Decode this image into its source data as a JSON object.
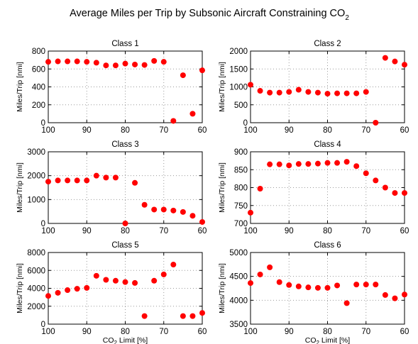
{
  "title": "Average Miles per Trip by Subsonic Aircraft Constraining CO",
  "title_subscript": "2",
  "chart_data": [
    {
      "type": "scatter",
      "title": "Class 1",
      "ylabel": "Miles/Trip [nmi]",
      "xlabel": "",
      "x_reversed": true,
      "xlim": [
        100,
        60
      ],
      "xticks": [
        100,
        90,
        80,
        70,
        60
      ],
      "ylim": [
        0,
        800
      ],
      "yticks": [
        0,
        200,
        400,
        600,
        800
      ],
      "grid": true,
      "color": "#ff0000",
      "x": [
        100,
        97.5,
        95,
        92.5,
        90,
        87.5,
        85,
        82.5,
        80,
        77.5,
        75,
        72.5,
        70,
        67.5,
        65,
        62.5,
        60
      ],
      "y": [
        680,
        685,
        685,
        685,
        680,
        670,
        640,
        640,
        660,
        650,
        645,
        690,
        680,
        20,
        530,
        100,
        585
      ]
    },
    {
      "type": "scatter",
      "title": "Class 2",
      "ylabel": "Miles/Trip [nmi]",
      "xlabel": "",
      "x_reversed": true,
      "xlim": [
        100,
        60
      ],
      "xticks": [
        100,
        90,
        80,
        70,
        60
      ],
      "ylim": [
        0,
        2000
      ],
      "yticks": [
        0,
        500,
        1000,
        1500,
        2000
      ],
      "grid": true,
      "color": "#ff0000",
      "x": [
        100,
        97.5,
        95,
        92.5,
        90,
        87.5,
        85,
        82.5,
        80,
        77.5,
        75,
        72.5,
        70,
        67.5,
        65,
        62.5,
        60
      ],
      "y": [
        1060,
        890,
        840,
        840,
        860,
        920,
        860,
        840,
        810,
        820,
        820,
        820,
        860,
        0,
        1810,
        1710,
        1620
      ]
    },
    {
      "type": "scatter",
      "title": "Class 3",
      "ylabel": "Miles/Trip [nmi]",
      "xlabel": "",
      "x_reversed": true,
      "xlim": [
        100,
        60
      ],
      "xticks": [
        100,
        90,
        80,
        70,
        60
      ],
      "ylim": [
        0,
        3000
      ],
      "yticks": [
        0,
        1000,
        2000,
        3000
      ],
      "grid": true,
      "color": "#ff0000",
      "x": [
        100,
        97.5,
        95,
        92.5,
        90,
        87.5,
        85,
        82.5,
        80,
        77.5,
        75,
        72.5,
        70,
        67.5,
        65,
        62.5,
        60
      ],
      "y": [
        1750,
        1800,
        1800,
        1800,
        1800,
        2000,
        1920,
        1920,
        0,
        1700,
        780,
        580,
        580,
        540,
        480,
        320,
        60
      ]
    },
    {
      "type": "scatter",
      "title": "Class 4",
      "ylabel": "Miles/Trip [nmi]",
      "xlabel": "",
      "x_reversed": true,
      "xlim": [
        100,
        60
      ],
      "xticks": [
        100,
        90,
        80,
        70,
        60
      ],
      "ylim": [
        700,
        900
      ],
      "yticks": [
        700,
        750,
        800,
        850,
        900
      ],
      "grid": true,
      "color": "#ff0000",
      "x": [
        100,
        97.5,
        95,
        92.5,
        90,
        87.5,
        85,
        82.5,
        80,
        77.5,
        75,
        72.5,
        70,
        67.5,
        65,
        62.5,
        60
      ],
      "y": [
        730,
        797,
        865,
        865,
        862,
        866,
        866,
        867,
        869,
        869,
        872,
        860,
        840,
        820,
        800,
        785,
        785
      ]
    },
    {
      "type": "scatter",
      "title": "Class 5",
      "ylabel": "Miles/Trip [nmi]",
      "xlabel": "CO2 Limit [%]",
      "x_reversed": true,
      "xlim": [
        100,
        60
      ],
      "xticks": [
        100,
        90,
        80,
        70,
        60
      ],
      "ylim": [
        0,
        8000
      ],
      "yticks": [
        0,
        2000,
        4000,
        6000,
        8000
      ],
      "grid": true,
      "color": "#ff0000",
      "x": [
        100,
        97.5,
        95,
        92.5,
        90,
        87.5,
        85,
        82.5,
        80,
        77.5,
        75,
        72.5,
        70,
        67.5,
        65,
        62.5,
        60
      ],
      "y": [
        3150,
        3500,
        3800,
        3950,
        4050,
        5400,
        4950,
        4850,
        4700,
        4600,
        900,
        4850,
        5550,
        6650,
        900,
        900,
        1250
      ]
    },
    {
      "type": "scatter",
      "title": "Class 6",
      "ylabel": "Miles/Trip [nmi]",
      "xlabel": "CO2 Limit [%]",
      "x_reversed": true,
      "xlim": [
        100,
        60
      ],
      "xticks": [
        100,
        90,
        80,
        70,
        60
      ],
      "ylim": [
        3500,
        5000
      ],
      "yticks": [
        3500,
        4000,
        4500,
        5000
      ],
      "grid": true,
      "color": "#ff0000",
      "x": [
        100,
        97.5,
        95,
        92.5,
        90,
        87.5,
        85,
        82.5,
        80,
        77.5,
        75,
        72.5,
        70,
        67.5,
        65,
        62.5,
        60
      ],
      "y": [
        4360,
        4540,
        4690,
        4380,
        4320,
        4290,
        4270,
        4260,
        4260,
        4310,
        3940,
        4330,
        4330,
        4330,
        4110,
        4040,
        4120
      ]
    }
  ]
}
